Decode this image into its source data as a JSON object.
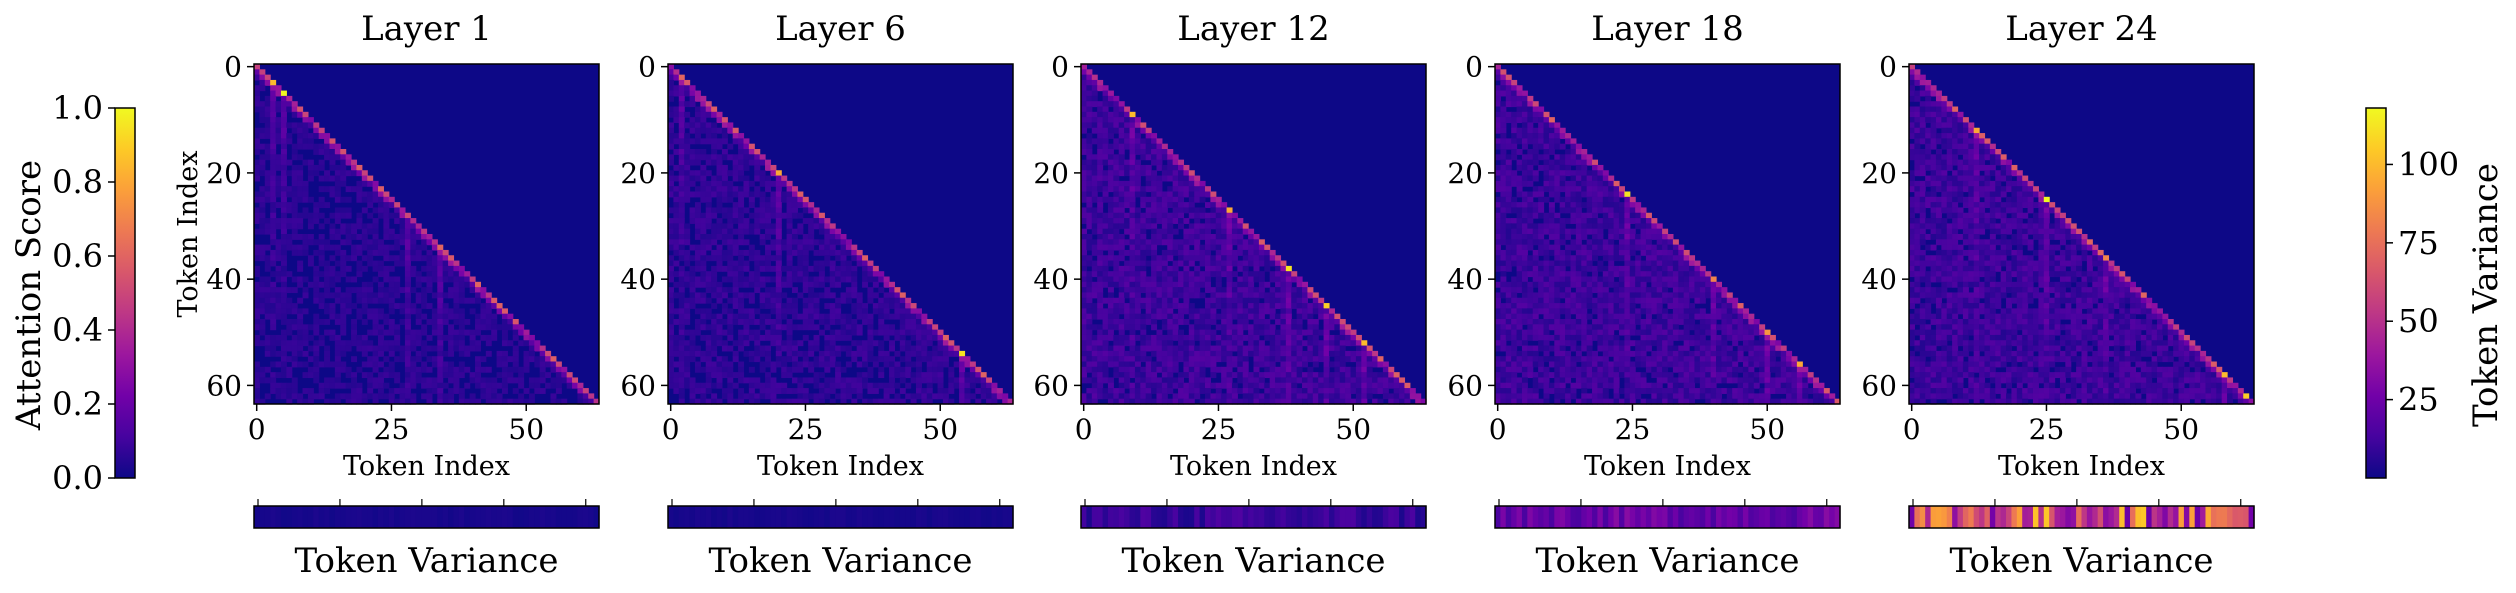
{
  "colors": {
    "plasma": [
      "#0d0887",
      "#46039f",
      "#7201a8",
      "#9c179e",
      "#bd3786",
      "#d8576b",
      "#ed7953",
      "#fb9f3a",
      "#fdca26",
      "#f0f921"
    ],
    "background": "#ffffff",
    "axis": "#000000"
  },
  "chart_data": [
    {
      "type": "heatmap",
      "title": "Layer 1",
      "xlabel": "Token Index",
      "ylabel": "Token Index",
      "xlim": [
        0,
        63
      ],
      "ylim": [
        0,
        63
      ],
      "xticks": [
        "0",
        "25",
        "50"
      ],
      "yticks": [
        "0",
        "20",
        "40",
        "60"
      ],
      "mask": "lower-triangular",
      "diagonal_peaks": [
        {
          "i": 5,
          "value": 1.0
        },
        {
          "i": 3,
          "value": 0.85
        },
        {
          "i": 34,
          "value": 0.6
        },
        {
          "i": 28,
          "value": 0.5
        }
      ],
      "background_level": 0.06,
      "variance_strip": {
        "label": "Token Variance",
        "level": 0.02,
        "spread": 0.01
      }
    },
    {
      "type": "heatmap",
      "title": "Layer 6",
      "xlabel": "Token Index",
      "xlim": [
        0,
        63
      ],
      "ylim": [
        0,
        63
      ],
      "xticks": [
        "0",
        "25",
        "50"
      ],
      "yticks": [
        "0",
        "20",
        "40",
        "60"
      ],
      "mask": "lower-triangular",
      "diagonal_peaks": [
        {
          "i": 20,
          "value": 0.8
        },
        {
          "i": 54,
          "value": 0.95
        },
        {
          "i": 2,
          "value": 0.6
        }
      ],
      "background_level": 0.07,
      "variance_strip": {
        "label": "Token Variance",
        "level": 0.02,
        "spread": 0.01
      }
    },
    {
      "type": "heatmap",
      "title": "Layer 12",
      "xlabel": "Token Index",
      "xlim": [
        0,
        63
      ],
      "ylim": [
        0,
        63
      ],
      "xticks": [
        "0",
        "25",
        "50"
      ],
      "yticks": [
        "0",
        "20",
        "40",
        "60"
      ],
      "mask": "lower-triangular",
      "diagonal_peaks": [
        {
          "i": 9,
          "value": 0.85
        },
        {
          "i": 27,
          "value": 0.8
        },
        {
          "i": 38,
          "value": 0.95
        },
        {
          "i": 45,
          "value": 0.9
        },
        {
          "i": 52,
          "value": 0.85
        }
      ],
      "background_level": 0.1,
      "variance_strip": {
        "label": "Token Variance",
        "level": 0.08,
        "spread": 0.06
      }
    },
    {
      "type": "heatmap",
      "title": "Layer 18",
      "xlabel": "Token Index",
      "xlim": [
        0,
        63
      ],
      "ylim": [
        0,
        63
      ],
      "xticks": [
        "0",
        "25",
        "50"
      ],
      "yticks": [
        "0",
        "20",
        "40",
        "60"
      ],
      "mask": "lower-triangular",
      "diagonal_peaks": [
        {
          "i": 24,
          "value": 0.95
        },
        {
          "i": 40,
          "value": 0.7
        },
        {
          "i": 50,
          "value": 0.75
        },
        {
          "i": 56,
          "value": 0.8
        }
      ],
      "background_level": 0.1,
      "variance_strip": {
        "label": "Token Variance",
        "level": 0.2,
        "spread": 0.08
      }
    },
    {
      "type": "heatmap",
      "title": "Layer 24",
      "xlabel": "Token Index",
      "xlim": [
        0,
        63
      ],
      "ylim": [
        0,
        63
      ],
      "xticks": [
        "0",
        "25",
        "50"
      ],
      "yticks": [
        "0",
        "20",
        "40",
        "60"
      ],
      "mask": "lower-triangular",
      "diagonal_peaks": [
        {
          "i": 12,
          "value": 0.8
        },
        {
          "i": 25,
          "value": 1.0
        },
        {
          "i": 36,
          "value": 0.7
        },
        {
          "i": 58,
          "value": 0.85
        },
        {
          "i": 62,
          "value": 0.9
        }
      ],
      "background_level": 0.1,
      "variance_strip": {
        "label": "Token Variance",
        "level": 0.55,
        "spread": 0.35
      }
    },
    {
      "type": "colorbar",
      "label": "Attention Score",
      "range": [
        0.0,
        1.0
      ],
      "ticks": [
        "0.0",
        "0.2",
        "0.4",
        "0.6",
        "0.8",
        "1.0"
      ]
    },
    {
      "type": "colorbar",
      "label": "Token Variance",
      "range": [
        0,
        118
      ],
      "ticks": [
        "25",
        "50",
        "75",
        "100"
      ]
    }
  ]
}
